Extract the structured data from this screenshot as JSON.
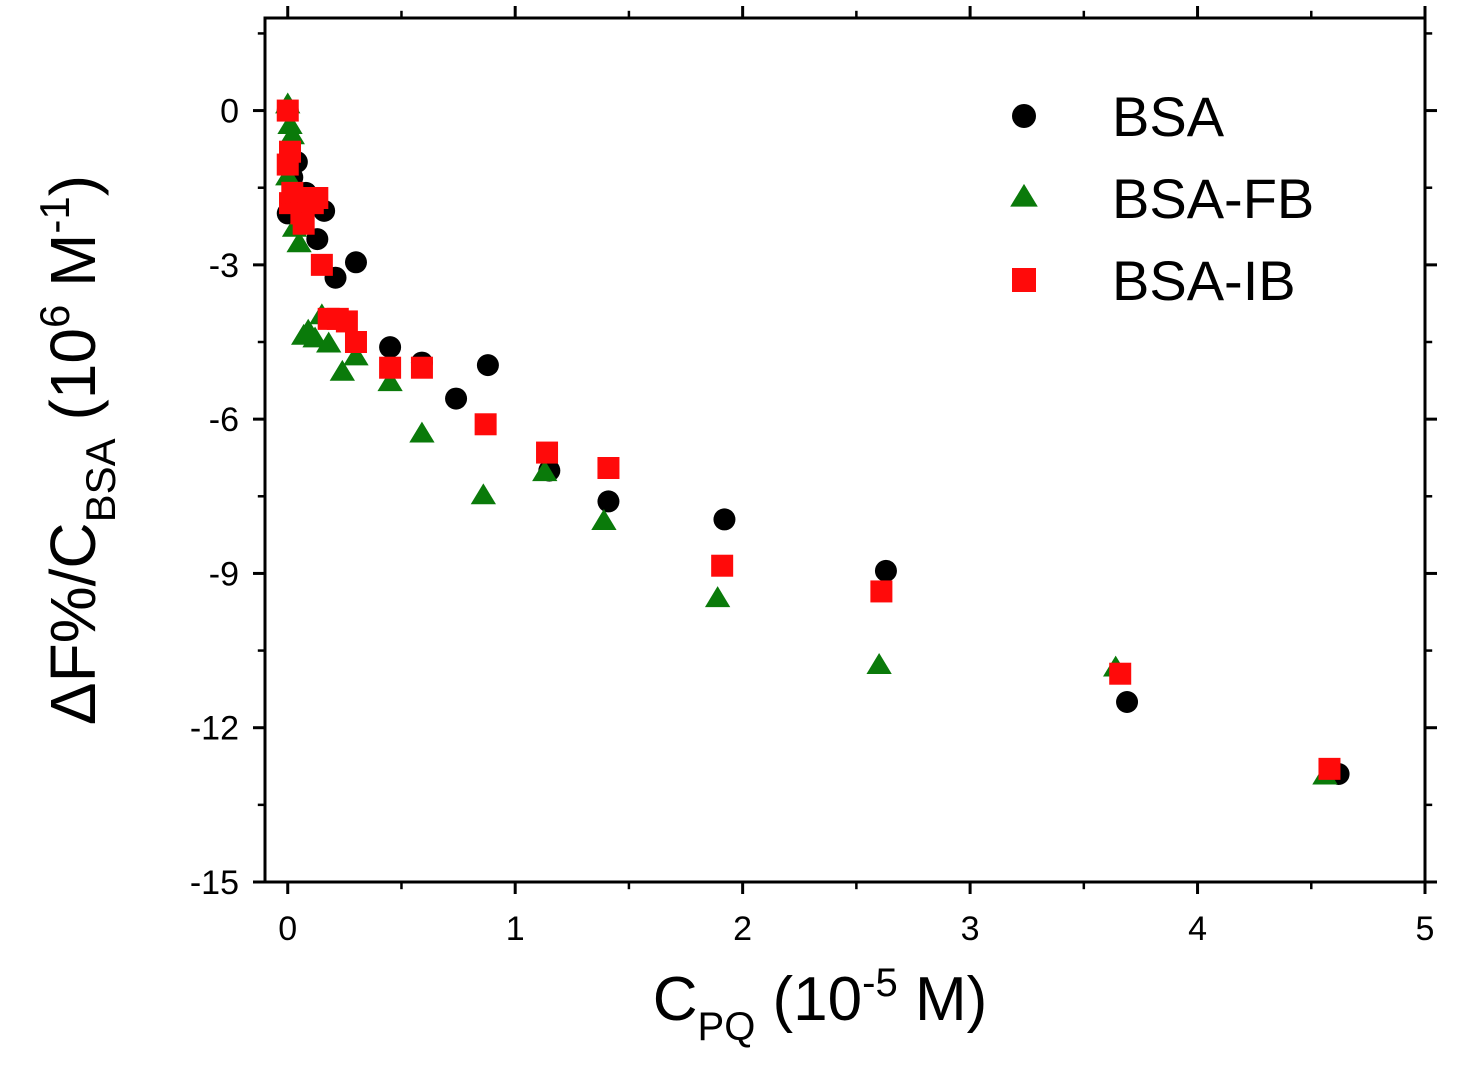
{
  "chart_data": {
    "type": "scatter",
    "xlabel": {
      "main": "C",
      "sub": "PQ",
      "mid": " (10",
      "sup": "-5",
      "end": " M)"
    },
    "ylabel": {
      "main": "ΔF%/C",
      "sub": "BSA",
      "mid": " (10",
      "sup": "6",
      "end": " M",
      "sup2": "-1",
      "close": ")"
    },
    "xlim": [
      -0.1,
      5
    ],
    "ylim": [
      -15,
      1.8
    ],
    "xticks": [
      0,
      1,
      2,
      3,
      4,
      5
    ],
    "yticks": [
      0,
      -3,
      -6,
      -9,
      -12,
      -15
    ],
    "legend_position": "top-right",
    "series": [
      {
        "name": "BSA",
        "marker": "circle",
        "color": "#000000",
        "x": [
          0.0,
          0.0,
          0.02,
          0.04,
          0.08,
          0.13,
          0.16,
          0.21,
          0.3,
          0.45,
          0.59,
          0.74,
          0.88,
          1.15,
          1.41,
          1.92,
          2.63,
          3.69,
          4.62
        ],
        "y": [
          0.0,
          -2.0,
          -1.3,
          -1.0,
          -1.6,
          -2.5,
          -1.95,
          -3.25,
          -2.95,
          -4.6,
          -4.9,
          -5.6,
          -4.95,
          -7.0,
          -7.6,
          -7.95,
          -8.95,
          -11.5,
          -12.9
        ]
      },
      {
        "name": "BSA-FB",
        "marker": "triangle",
        "color": "#0a7a0a",
        "x": [
          0.0,
          0.0,
          0.01,
          0.02,
          0.03,
          0.05,
          0.07,
          0.09,
          0.12,
          0.15,
          0.18,
          0.24,
          0.3,
          0.45,
          0.59,
          0.86,
          1.13,
          1.39,
          1.89,
          2.6,
          3.64,
          4.56
        ],
        "y": [
          0.1,
          -1.3,
          -0.3,
          -0.5,
          -2.3,
          -2.6,
          -4.4,
          -4.3,
          -4.45,
          -4.0,
          -4.55,
          -5.1,
          -4.8,
          -5.3,
          -6.3,
          -7.5,
          -7.05,
          -8.0,
          -9.5,
          -10.8,
          -10.85,
          -12.95
        ]
      },
      {
        "name": "BSA-IB",
        "marker": "square",
        "color": "#ff0a0a",
        "x": [
          0.0,
          0.0,
          0.01,
          0.01,
          0.02,
          0.04,
          0.06,
          0.07,
          0.09,
          0.11,
          0.13,
          0.15,
          0.18,
          0.22,
          0.26,
          0.3,
          0.45,
          0.59,
          0.87,
          1.14,
          1.41,
          1.91,
          2.61,
          3.66,
          4.58
        ],
        "y": [
          0.0,
          -1.05,
          -0.8,
          -1.8,
          -1.6,
          -1.75,
          -2.0,
          -2.2,
          -1.7,
          -1.8,
          -1.7,
          -3.0,
          -4.05,
          -4.05,
          -4.1,
          -4.5,
          -5.0,
          -5.0,
          -6.1,
          -6.65,
          -6.95,
          -8.85,
          -9.35,
          -10.95,
          -12.8
        ]
      }
    ]
  }
}
